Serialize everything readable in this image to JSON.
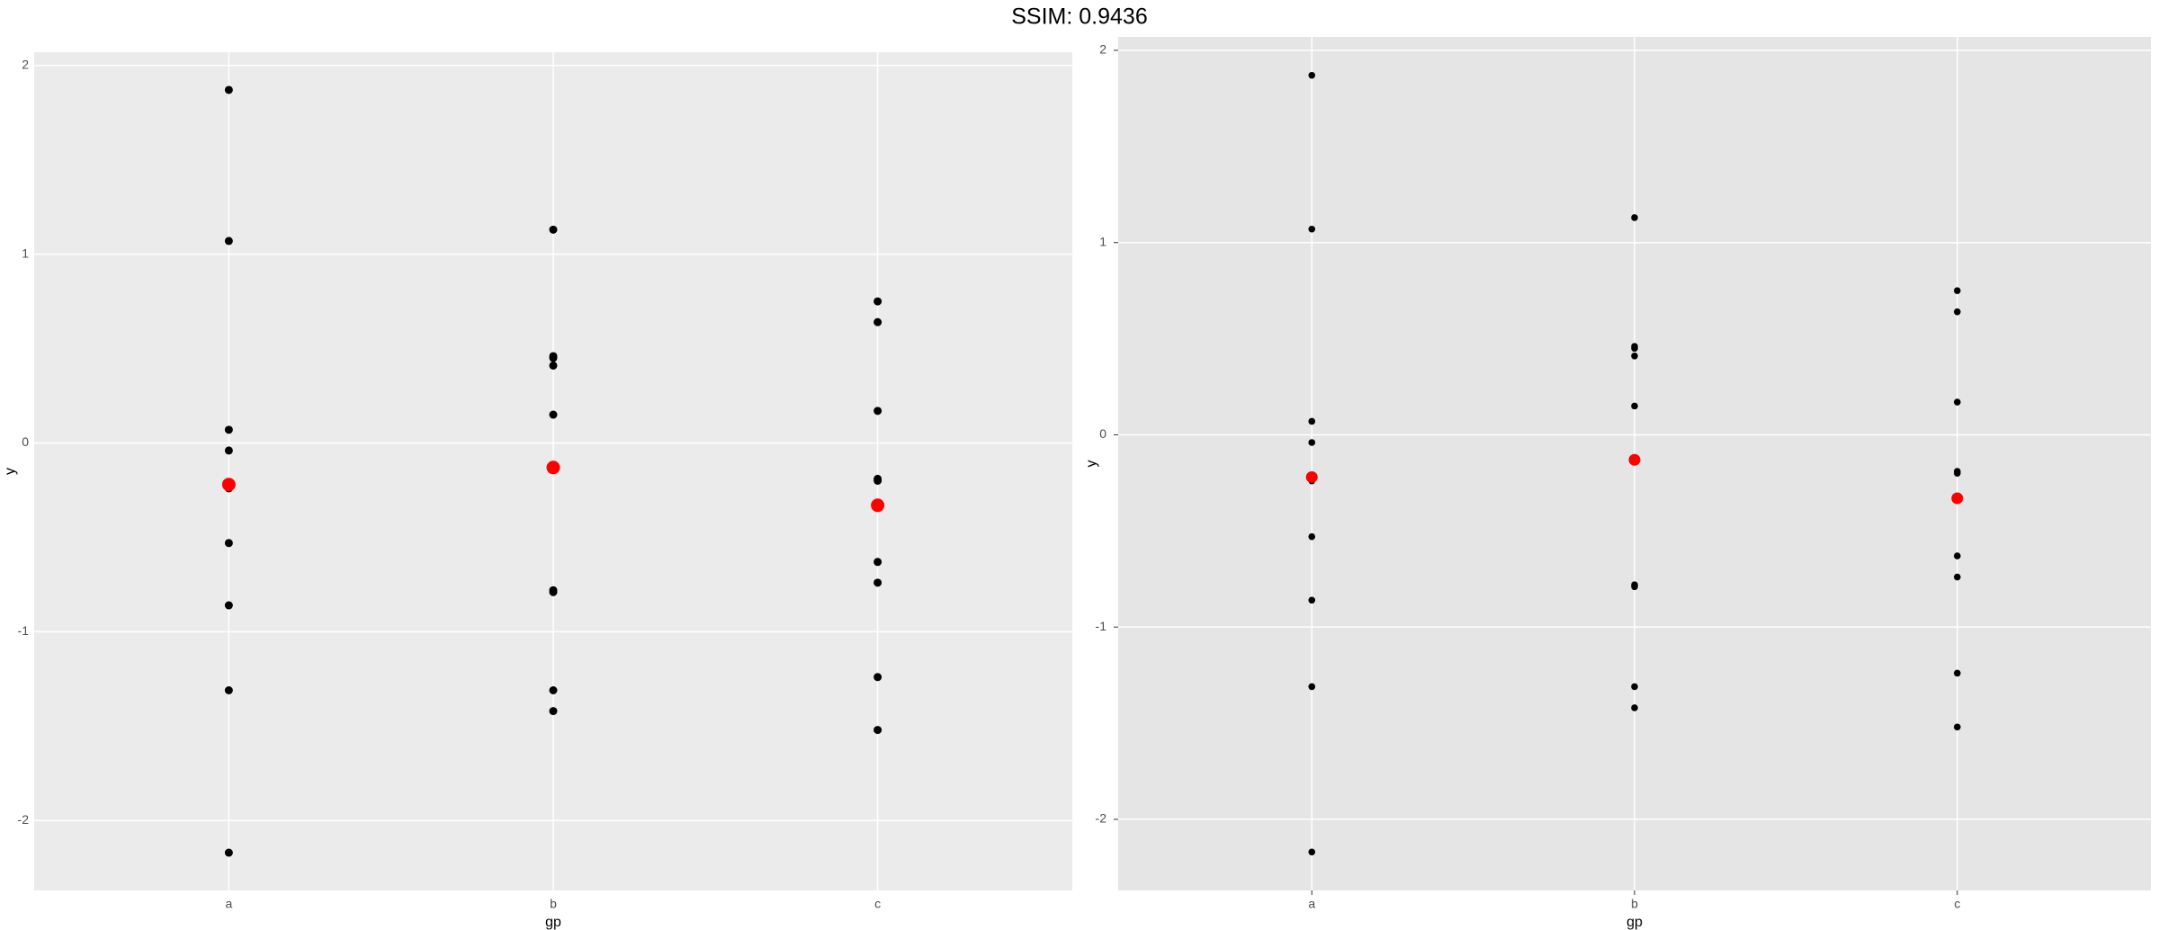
{
  "title": "SSIM: 0.9436",
  "chart_data": [
    {
      "type": "scatter",
      "xlabel": "gp",
      "ylabel": "y",
      "categories": [
        "a",
        "b",
        "c"
      ],
      "ylim": [
        -2.37,
        2.07
      ],
      "yticks": [
        -2,
        -1,
        0,
        1,
        2
      ],
      "grid": true,
      "series": [
        {
          "color": "#000000",
          "x": [
            "a",
            "a",
            "a",
            "a",
            "a",
            "a",
            "a",
            "a",
            "a",
            "b",
            "b",
            "b",
            "b",
            "b",
            "b",
            "b",
            "b",
            "b",
            "c",
            "c",
            "c",
            "c",
            "c",
            "c",
            "c",
            "c",
            "c",
            "c"
          ],
          "values": [
            1.87,
            1.07,
            0.07,
            -0.04,
            -0.24,
            -0.53,
            -0.86,
            -1.31,
            -2.17,
            1.13,
            0.46,
            0.45,
            0.41,
            0.15,
            -0.78,
            -0.79,
            -1.31,
            -1.42,
            0.75,
            0.64,
            0.17,
            -0.19,
            -0.2,
            -0.33,
            -0.63,
            -0.74,
            -1.24,
            -1.52
          ]
        },
        {
          "color": "#ff0000",
          "x": [
            "a",
            "b",
            "c"
          ],
          "values": [
            -0.22,
            -0.13,
            -0.33
          ]
        }
      ]
    },
    {
      "type": "scatter",
      "xlabel": "gp",
      "ylabel": "y",
      "categories": [
        "a",
        "b",
        "c"
      ],
      "ylim": [
        -2.37,
        2.07
      ],
      "yticks": [
        -2,
        -1,
        0,
        1,
        2
      ],
      "grid": true,
      "series": [
        {
          "color": "#000000",
          "x": [
            "a",
            "a",
            "a",
            "a",
            "a",
            "a",
            "a",
            "a",
            "a",
            "b",
            "b",
            "b",
            "b",
            "b",
            "b",
            "b",
            "b",
            "b",
            "c",
            "c",
            "c",
            "c",
            "c",
            "c",
            "c",
            "c",
            "c",
            "c"
          ],
          "values": [
            1.87,
            1.07,
            0.07,
            -0.04,
            -0.24,
            -0.53,
            -0.86,
            -1.31,
            -2.17,
            1.13,
            0.46,
            0.45,
            0.41,
            0.15,
            -0.78,
            -0.79,
            -1.31,
            -1.42,
            0.75,
            0.64,
            0.17,
            -0.19,
            -0.2,
            -0.33,
            -0.63,
            -0.74,
            -1.24,
            -1.52
          ]
        },
        {
          "color": "#ff0000",
          "x": [
            "a",
            "b",
            "c"
          ],
          "values": [
            -0.22,
            -0.13,
            -0.33
          ]
        }
      ]
    }
  ]
}
